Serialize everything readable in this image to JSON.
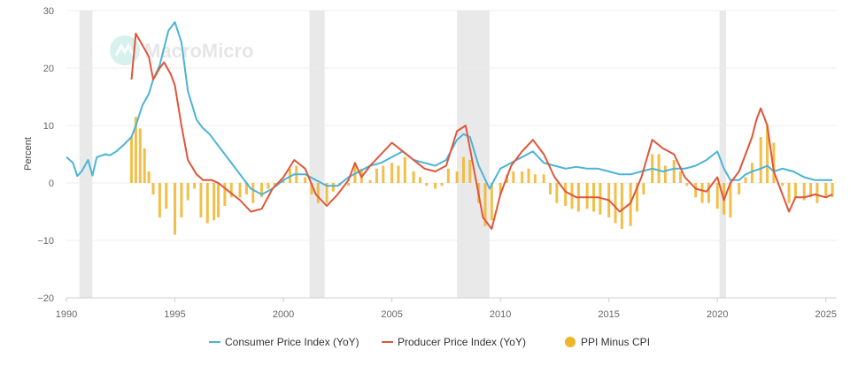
{
  "watermark": "MacroMicro",
  "colors": {
    "cpi": "#4ab4d6",
    "ppi": "#e0553a",
    "diff": "#f0b429",
    "grid": "#ececec",
    "recession": "#e9e9e9",
    "axis": "#cfcfcf"
  },
  "legend_icons": [
    "line-marker-icon",
    "line-marker-icon",
    "dot-marker-icon"
  ],
  "chart_data": {
    "type": "line",
    "ylabel": "Percent",
    "xlabel": "",
    "ylim": [
      -20,
      30
    ],
    "xlim": [
      1990.0,
      2025.5
    ],
    "y_ticks": [
      30,
      20,
      10,
      0,
      -10,
      -20
    ],
    "y_tick_labels": [
      "30",
      "20",
      "10",
      "0",
      "−10",
      "−20"
    ],
    "x_ticks": [
      1990,
      1995,
      2000,
      2005,
      2010,
      2015,
      2020,
      2025
    ],
    "x_tick_labels": [
      "1990",
      "1995",
      "2000",
      "2005",
      "2010",
      "2015",
      "2020",
      "2025"
    ],
    "grid": true,
    "legend_position": "bottom-center",
    "recessions": [
      [
        1990.6,
        1991.2
      ],
      [
        2001.2,
        2001.9
      ],
      [
        2008.0,
        2009.5
      ],
      [
        2020.1,
        2020.4
      ]
    ],
    "series": [
      {
        "name": "Consumer Price Index (YoY)",
        "kind": "line",
        "x": [
          1990.0,
          1990.3,
          1990.5,
          1990.7,
          1991.0,
          1991.2,
          1991.4,
          1991.8,
          1992.0,
          1992.3,
          1992.6,
          1993.0,
          1993.2,
          1993.5,
          1993.8,
          1994.0,
          1994.3,
          1994.5,
          1994.7,
          1995.0,
          1995.3,
          1995.6,
          1996.0,
          1996.3,
          1996.6,
          1997.0,
          1997.5,
          1998.0,
          1998.5,
          1999.0,
          1999.5,
          2000.0,
          2000.5,
          2001.0,
          2001.5,
          2002.0,
          2002.5,
          2003.0,
          2003.5,
          2004.0,
          2004.5,
          2005.0,
          2005.5,
          2006.0,
          2006.5,
          2007.0,
          2007.5,
          2008.0,
          2008.3,
          2008.6,
          2009.0,
          2009.5,
          2010.0,
          2010.5,
          2011.0,
          2011.5,
          2012.0,
          2012.5,
          2013.0,
          2013.5,
          2014.0,
          2014.5,
          2015.0,
          2015.5,
          2016.0,
          2016.5,
          2017.0,
          2017.5,
          2018.0,
          2018.5,
          2019.0,
          2019.5,
          2020.0,
          2020.3,
          2020.6,
          2021.0,
          2021.3,
          2021.6,
          2022.0,
          2022.3,
          2022.6,
          2023.0,
          2023.5,
          2024.0,
          2024.5,
          2025.0,
          2025.3
        ],
        "y": [
          4.5,
          3.5,
          1.2,
          2.0,
          4.0,
          1.3,
          4.5,
          5.0,
          4.8,
          5.5,
          6.5,
          8.0,
          10.0,
          13.5,
          15.5,
          18.0,
          20.5,
          23.5,
          26.5,
          28.0,
          24.5,
          16.0,
          11.0,
          9.5,
          8.5,
          6.5,
          4.0,
          1.5,
          -1.0,
          -2.0,
          -1.0,
          0.5,
          1.5,
          1.5,
          0.5,
          -0.5,
          -0.5,
          1.0,
          2.0,
          3.0,
          3.5,
          4.5,
          5.5,
          4.0,
          3.5,
          3.0,
          4.0,
          7.5,
          8.5,
          8.0,
          3.0,
          -1.0,
          2.5,
          3.5,
          4.5,
          5.5,
          3.5,
          3.0,
          2.5,
          2.8,
          2.5,
          2.5,
          2.0,
          1.5,
          1.5,
          2.0,
          2.5,
          2.0,
          2.5,
          2.5,
          3.0,
          4.0,
          5.5,
          2.5,
          0.5,
          0.5,
          1.5,
          2.0,
          2.5,
          3.0,
          2.0,
          2.5,
          2.0,
          1.0,
          0.5,
          0.5,
          0.5
        ]
      },
      {
        "name": "Producer Price Index (YoY)",
        "kind": "line",
        "x": [
          1993.0,
          1993.2,
          1993.5,
          1993.8,
          1994.0,
          1994.3,
          1994.5,
          1994.8,
          1995.0,
          1995.3,
          1995.6,
          1996.0,
          1996.3,
          1996.7,
          1997.0,
          1997.5,
          1998.0,
          1998.5,
          1999.0,
          1999.5,
          2000.0,
          2000.5,
          2001.0,
          2001.5,
          2002.0,
          2002.5,
          2003.0,
          2003.3,
          2003.6,
          2004.0,
          2004.5,
          2005.0,
          2005.5,
          2006.0,
          2006.5,
          2007.0,
          2007.5,
          2008.0,
          2008.4,
          2008.8,
          2009.2,
          2009.6,
          2010.0,
          2010.5,
          2011.0,
          2011.5,
          2012.0,
          2012.5,
          2013.0,
          2013.5,
          2014.0,
          2014.5,
          2015.0,
          2015.5,
          2016.0,
          2016.5,
          2017.0,
          2017.5,
          2018.0,
          2018.5,
          2019.0,
          2019.5,
          2020.0,
          2020.3,
          2020.6,
          2021.0,
          2021.3,
          2021.6,
          2021.8,
          2022.0,
          2022.3,
          2022.6,
          2023.0,
          2023.3,
          2023.6,
          2024.0,
          2024.5,
          2025.0,
          2025.3
        ],
        "y": [
          18.0,
          26.0,
          24.0,
          22.0,
          18.0,
          20.0,
          21.0,
          19.0,
          17.0,
          10.0,
          4.0,
          1.5,
          0.5,
          0.5,
          0.0,
          -1.5,
          -3.0,
          -5.0,
          -4.5,
          -1.0,
          1.0,
          4.0,
          2.5,
          -2.0,
          -4.0,
          -2.0,
          0.5,
          3.5,
          1.0,
          3.0,
          5.0,
          7.0,
          5.5,
          4.0,
          2.5,
          2.0,
          3.0,
          9.0,
          10.0,
          2.0,
          -6.0,
          -8.0,
          -2.0,
          3.0,
          5.5,
          7.5,
          5.0,
          1.0,
          -1.5,
          -2.5,
          -2.5,
          -2.5,
          -3.0,
          -5.0,
          -3.5,
          1.0,
          7.5,
          6.0,
          5.0,
          1.0,
          -1.0,
          -1.5,
          1.0,
          -3.0,
          0.0,
          2.0,
          5.0,
          8.0,
          11.0,
          13.0,
          10.0,
          2.0,
          -2.0,
          -5.0,
          -2.5,
          -2.5,
          -2.0,
          -2.5,
          -2.0
        ]
      },
      {
        "name": "PPI Minus CPI",
        "kind": "bar",
        "x": [
          1993.0,
          1993.2,
          1993.4,
          1993.6,
          1993.8,
          1994.0,
          1994.3,
          1994.6,
          1995.0,
          1995.3,
          1995.6,
          1995.9,
          1996.2,
          1996.5,
          1996.8,
          1997.0,
          1997.3,
          1997.6,
          1998.0,
          1998.3,
          1998.6,
          1999.0,
          1999.3,
          1999.6,
          2000.0,
          2000.3,
          2000.6,
          2001.0,
          2001.3,
          2001.6,
          2002.0,
          2002.3,
          2002.6,
          2003.0,
          2003.3,
          2003.6,
          2004.0,
          2004.3,
          2004.6,
          2005.0,
          2005.3,
          2005.6,
          2006.0,
          2006.3,
          2006.6,
          2007.0,
          2007.3,
          2007.6,
          2008.0,
          2008.3,
          2008.6,
          2009.0,
          2009.3,
          2009.6,
          2010.0,
          2010.3,
          2010.6,
          2011.0,
          2011.3,
          2011.6,
          2012.0,
          2012.3,
          2012.6,
          2013.0,
          2013.3,
          2013.6,
          2014.0,
          2014.3,
          2014.6,
          2015.0,
          2015.3,
          2015.6,
          2016.0,
          2016.3,
          2016.6,
          2017.0,
          2017.3,
          2017.6,
          2018.0,
          2018.3,
          2018.6,
          2019.0,
          2019.3,
          2019.6,
          2020.0,
          2020.3,
          2020.6,
          2021.0,
          2021.3,
          2021.6,
          2022.0,
          2022.3,
          2022.6,
          2023.0,
          2023.3,
          2023.6,
          2024.0,
          2024.3,
          2024.6,
          2025.0,
          2025.3
        ],
        "y": [
          8.0,
          11.5,
          9.5,
          6.0,
          2.0,
          -2.0,
          -6.0,
          -4.5,
          -9.0,
          -6.0,
          -3.0,
          -1.0,
          -6.0,
          -7.0,
          -6.5,
          -6.0,
          -4.0,
          -2.5,
          -2.5,
          -2.0,
          -3.5,
          -2.5,
          -1.0,
          -0.5,
          0.5,
          2.5,
          3.0,
          1.0,
          -2.0,
          -3.5,
          -3.5,
          -1.5,
          -0.5,
          -0.5,
          3.5,
          2.5,
          0.5,
          2.5,
          3.0,
          3.5,
          3.0,
          4.5,
          2.0,
          1.0,
          -0.5,
          -1.0,
          -0.5,
          2.5,
          2.0,
          4.5,
          4.0,
          -3.5,
          -7.5,
          -6.5,
          -2.0,
          1.5,
          2.0,
          2.0,
          2.5,
          1.5,
          1.5,
          -2.0,
          -3.5,
          -4.0,
          -4.5,
          -5.0,
          -4.5,
          -5.0,
          -5.5,
          -6.0,
          -7.0,
          -8.0,
          -7.5,
          -5.0,
          -2.0,
          5.0,
          5.0,
          3.0,
          4.0,
          2.0,
          -0.5,
          -2.5,
          -3.5,
          -3.5,
          -4.5,
          -5.5,
          -6.0,
          -2.0,
          1.0,
          3.5,
          8.0,
          10.0,
          7.0,
          -0.5,
          -3.5,
          -2.5,
          -3.0,
          -2.5,
          -3.5,
          -2.5,
          -2.5
        ]
      }
    ]
  }
}
